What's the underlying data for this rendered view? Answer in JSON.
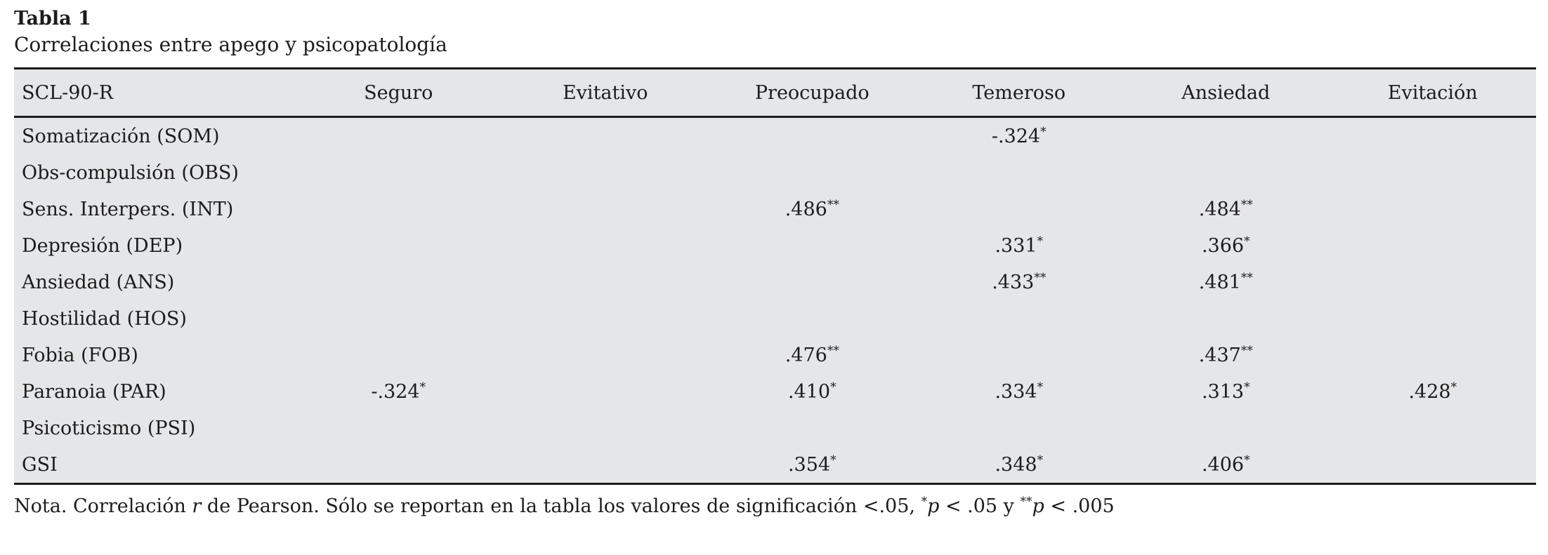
{
  "table": {
    "label": "Tabla 1",
    "caption": "Correlaciones entre apego y psicopatología",
    "columns": [
      "SCL-90-R",
      "Seguro",
      "Evitativo",
      "Preocupado",
      "Temeroso",
      "Ansiedad",
      "Evitación"
    ],
    "rows": [
      {
        "label": "Somatización (SOM)",
        "values": [
          "",
          "",
          "",
          "-.324*",
          "",
          ""
        ]
      },
      {
        "label": "Obs-compulsión (OBS)",
        "values": [
          "",
          "",
          "",
          "",
          "",
          ""
        ]
      },
      {
        "label": "Sens. Interpers. (INT)",
        "values": [
          "",
          "",
          ".486**",
          "",
          ".484**",
          ""
        ]
      },
      {
        "label": "Depresión (DEP)",
        "values": [
          "",
          "",
          "",
          ".331*",
          ".366*",
          ""
        ]
      },
      {
        "label": "Ansiedad (ANS)",
        "values": [
          "",
          "",
          "",
          ".433**",
          ".481**",
          ""
        ]
      },
      {
        "label": "Hostilidad (HOS)",
        "values": [
          "",
          "",
          "",
          "",
          "",
          ""
        ]
      },
      {
        "label": "Fobia (FOB)",
        "values": [
          "",
          "",
          ".476**",
          "",
          ".437**",
          ""
        ]
      },
      {
        "label": "Paranoia (PAR)",
        "values": [
          "-.324*",
          "",
          ".410*",
          ".334*",
          ".313*",
          ".428*"
        ]
      },
      {
        "label": "Psicoticismo (PSI)",
        "values": [
          "",
          "",
          "",
          "",
          "",
          ""
        ]
      },
      {
        "label": "GSI",
        "values": [
          "",
          "",
          ".354*",
          ".348*",
          ".406*",
          ""
        ]
      }
    ],
    "note_parts": [
      {
        "t": "Nota. Correlación "
      },
      {
        "t": "r",
        "i": true
      },
      {
        "t": " de Pearson. Sólo se reportan en la tabla los valores de significación <.05, "
      },
      {
        "t": "*",
        "sup": true
      },
      {
        "t": "p",
        "i": true
      },
      {
        "t": " < .05 y "
      },
      {
        "t": "**",
        "sup": true
      },
      {
        "t": "p",
        "i": true
      },
      {
        "t": " < .005"
      }
    ],
    "colors": {
      "shading": "#e5e6e8",
      "rule": "#1a1a1a",
      "text": "#1c1c1c"
    }
  }
}
